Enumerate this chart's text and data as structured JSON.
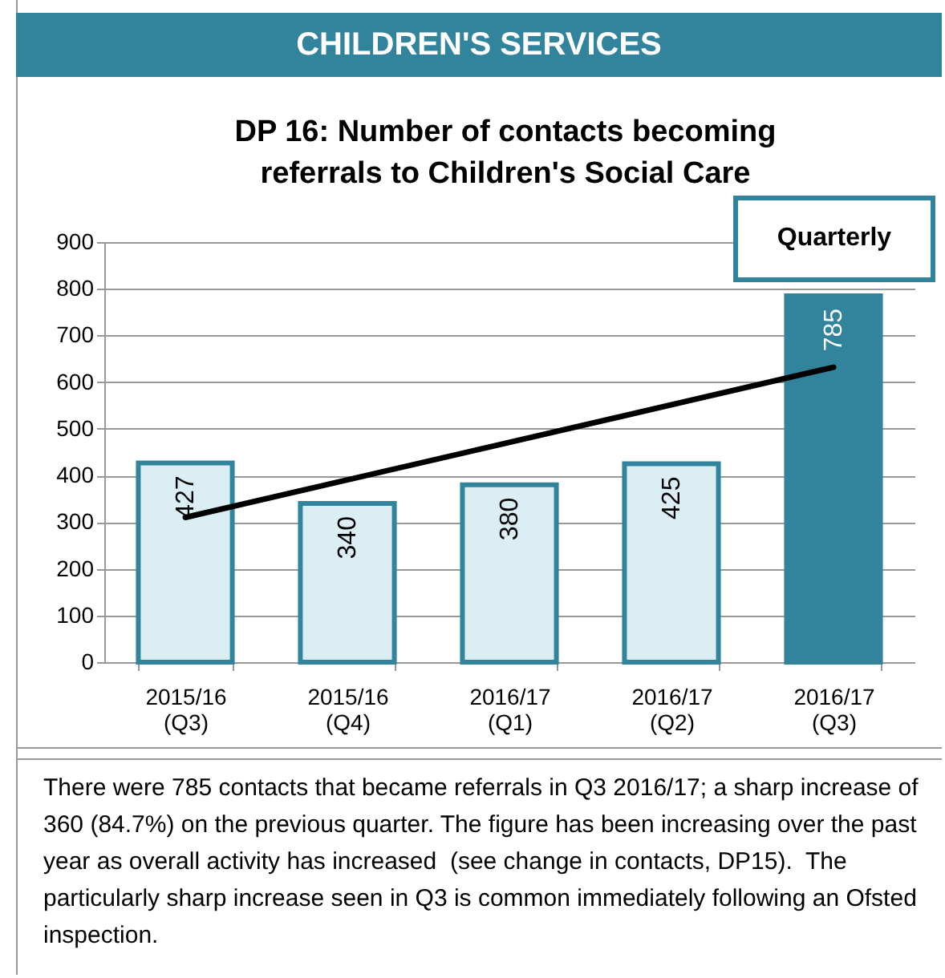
{
  "chart_data": {
    "type": "bar",
    "title": "DP 16: Number of contacts becoming referrals to Children's Social Care",
    "categories": [
      "2015/16 (Q3)",
      "2015/16 (Q4)",
      "2016/17 (Q1)",
      "2016/17 (Q2)",
      "2016/17 (Q3)"
    ],
    "series": [
      {
        "values": [
          427,
          340,
          380,
          425,
          785
        ],
        "value_labels": [
          "427",
          "340",
          "380",
          "425",
          "785"
        ],
        "colors": [
          "#daeef3",
          "#daeef3",
          "#daeef3",
          "#daeef3",
          "#31849b"
        ]
      },
      {
        "type": "line",
        "x": [
          "2015/16 (Q3)",
          "2016/17 (Q3)"
        ],
        "values": [
          310,
          632
        ],
        "color": "#000000"
      }
    ],
    "ylim": [
      0,
      900
    ],
    "yticks": [
      0,
      100,
      200,
      300,
      400,
      500,
      600,
      700,
      800,
      900
    ],
    "grid": "y",
    "annotations": [
      "CHILDREN'S SERVICES",
      "Quarterly",
      "There were 785 contacts that became referrals in Q3 2016/17; a sharp increase of 360 (84.7%) on the previous quarter. The figure has been increasing over the past year as overall activity has increased  (see change in contacts, DP15).  The particularly sharp increase seen in Q3 is common immediately following an Ofsted inspection."
    ]
  }
}
